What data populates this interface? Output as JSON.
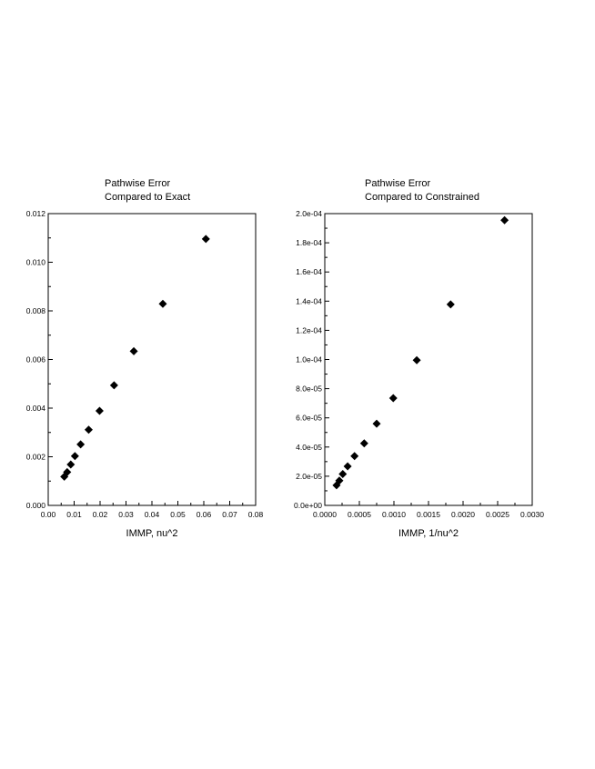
{
  "chart_data": [
    {
      "type": "scatter",
      "title": "Pathwise Error",
      "subtitle": "Compared to Exact",
      "xlabel": "IMMP, nu^2",
      "ylabel": "",
      "xlim": [
        0.0,
        0.08
      ],
      "ylim": [
        0.0,
        0.012
      ],
      "x_ticks": [
        "0.00",
        "0.01",
        "0.02",
        "0.03",
        "0.04",
        "0.05",
        "0.06",
        "0.07",
        "0.08"
      ],
      "y_ticks": [
        "0.000",
        "0.002",
        "0.004",
        "0.006",
        "0.008",
        "0.010",
        "0.012"
      ],
      "marker": "diamond",
      "marker_color": "#000000",
      "grid": false,
      "series": [
        {
          "x": [
            0.0062,
            0.0073,
            0.0087,
            0.0103,
            0.0125,
            0.0156,
            0.0198,
            0.0254,
            0.033,
            0.0442,
            0.0608
          ],
          "y": [
            0.00118,
            0.00137,
            0.00168,
            0.00203,
            0.00251,
            0.00311,
            0.00389,
            0.00494,
            0.00634,
            0.00829,
            0.01096
          ]
        }
      ]
    },
    {
      "type": "scatter",
      "title": "Pathwise Error",
      "subtitle": "Compared to Constrained",
      "xlabel": "IMMP, 1/nu^2",
      "ylabel": "",
      "xlim": [
        0.0,
        0.003
      ],
      "ylim": [
        0.0,
        0.0002
      ],
      "x_ticks": [
        "0.0000",
        "0.0005",
        "0.0010",
        "0.0015",
        "0.0020",
        "0.0025",
        "0.0030"
      ],
      "y_ticks": [
        "0.0e+00",
        "2.0e-05",
        "4.0e-05",
        "6.0e-05",
        "8.0e-05",
        "1.0e-04",
        "1.2e-04",
        "1.4e-04",
        "1.6e-04",
        "1.8e-04",
        "2.0e-04"
      ],
      "marker": "diamond",
      "marker_color": "#000000",
      "grid": false,
      "series": [
        {
          "x": [
            0.00017,
            0.00021,
            0.00026,
            0.00033,
            0.00043,
            0.00057,
            0.00075,
            0.00099,
            0.00133,
            0.00182,
            0.0026
          ],
          "y": [
            1.38e-05,
            1.7e-05,
            2.15e-05,
            2.68e-05,
            3.38e-05,
            4.25e-05,
            5.6e-05,
            7.35e-05,
            9.95e-05,
            0.0001378,
            0.0001955
          ]
        }
      ]
    }
  ]
}
